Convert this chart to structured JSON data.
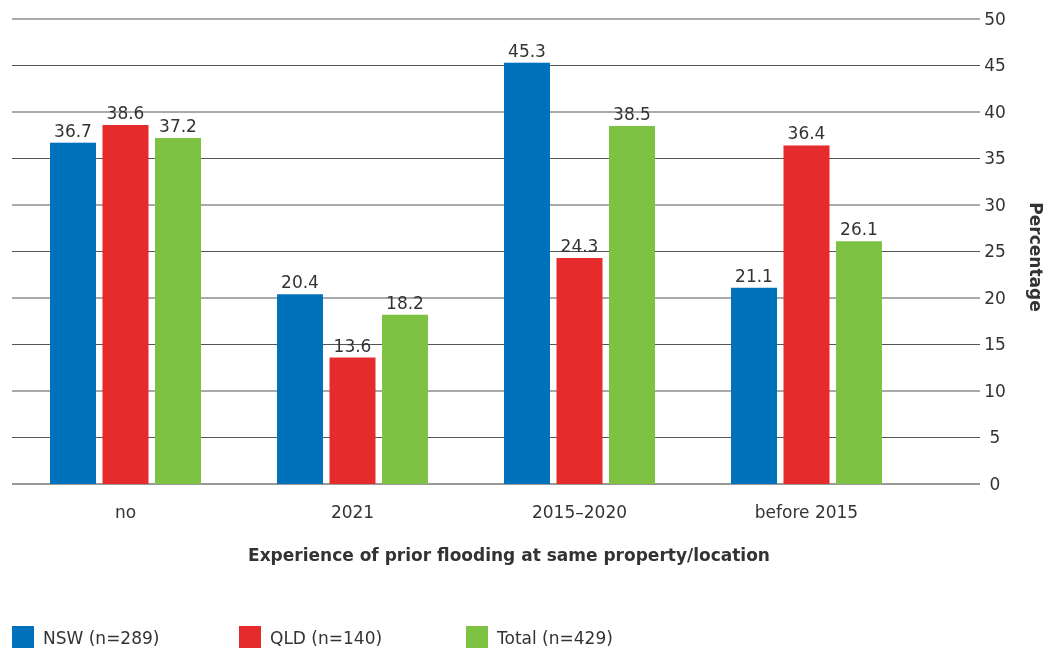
{
  "chart_data": {
    "type": "bar",
    "xlabel": "Experience of prior flooding at same property/location",
    "ylabel": "Percentage",
    "categories": [
      "no",
      "2021",
      "2015–2020",
      "before 2015"
    ],
    "series": [
      {
        "name": "NSW (n=289)",
        "color": "#0072bc",
        "values": [
          36.7,
          20.4,
          45.3,
          21.1
        ]
      },
      {
        "name": "QLD (n=140)",
        "color": "#e52b2b",
        "values": [
          38.6,
          13.6,
          24.3,
          36.4
        ]
      },
      {
        "name": "Total (n=429)",
        "color": "#7dc242",
        "values": [
          37.2,
          18.2,
          38.5,
          26.1
        ]
      }
    ],
    "ylim": [
      0,
      50
    ],
    "yticks": [
      0,
      5,
      10,
      15,
      20,
      25,
      30,
      35,
      40,
      45,
      50
    ],
    "grid": "y",
    "legend": "bottom",
    "data_labels": true
  }
}
